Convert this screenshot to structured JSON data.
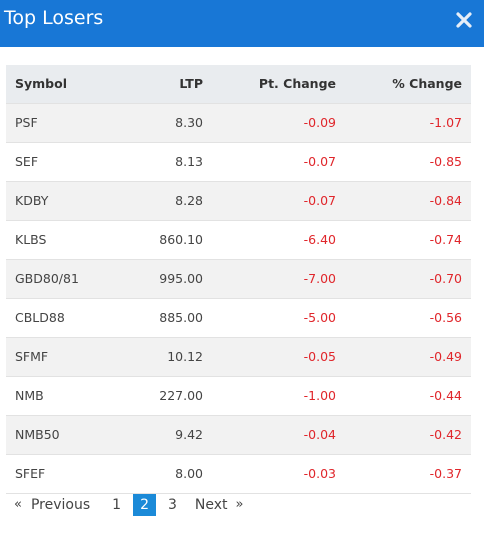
{
  "modal": {
    "title": "Top Losers",
    "close_icon": "close-icon"
  },
  "colors": {
    "header_bg": "#1877d6",
    "negative": "#e0262b",
    "active_page": "#1b8ad8"
  },
  "table": {
    "headers": {
      "symbol": "Symbol",
      "ltp": "LTP",
      "pt_change": "Pt. Change",
      "pct_change": "% Change"
    },
    "rows": [
      {
        "symbol": "PSF",
        "ltp": "8.30",
        "pt_change": "-0.09",
        "pct_change": "-1.07"
      },
      {
        "symbol": "SEF",
        "ltp": "8.13",
        "pt_change": "-0.07",
        "pct_change": "-0.85"
      },
      {
        "symbol": "KDBY",
        "ltp": "8.28",
        "pt_change": "-0.07",
        "pct_change": "-0.84"
      },
      {
        "symbol": "KLBS",
        "ltp": "860.10",
        "pt_change": "-6.40",
        "pct_change": "-0.74"
      },
      {
        "symbol": "GBD80/81",
        "ltp": "995.00",
        "pt_change": "-7.00",
        "pct_change": "-0.70"
      },
      {
        "symbol": "CBLD88",
        "ltp": "885.00",
        "pt_change": "-5.00",
        "pct_change": "-0.56"
      },
      {
        "symbol": "SFMF",
        "ltp": "10.12",
        "pt_change": "-0.05",
        "pct_change": "-0.49"
      },
      {
        "symbol": "NMB",
        "ltp": "227.00",
        "pt_change": "-1.00",
        "pct_change": "-0.44"
      },
      {
        "symbol": "NMB50",
        "ltp": "9.42",
        "pt_change": "-0.04",
        "pct_change": "-0.42"
      },
      {
        "symbol": "SFEF",
        "ltp": "8.00",
        "pt_change": "-0.03",
        "pct_change": "-0.37"
      }
    ]
  },
  "pagination": {
    "prev_arrow": "«",
    "previous": "Previous",
    "pages": [
      "1",
      "2",
      "3"
    ],
    "active_page": "2",
    "next": "Next",
    "next_arrow": "»"
  }
}
